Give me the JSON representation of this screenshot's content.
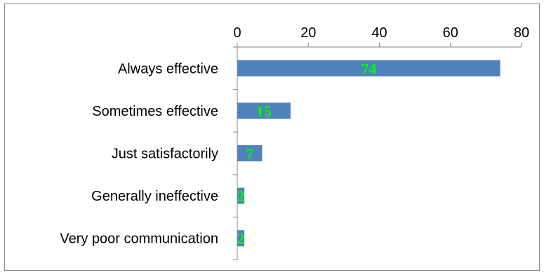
{
  "chart_data": {
    "type": "bar",
    "orientation": "horizontal",
    "categories": [
      "Always effective",
      "Sometimes effective",
      "Just satisfactorily",
      "Generally ineffective",
      "Very poor communication"
    ],
    "values": [
      74,
      15,
      7,
      2,
      2
    ],
    "data_labels": [
      "74",
      "15",
      "7",
      "2",
      "2"
    ],
    "xlim": [
      0,
      80
    ],
    "x_ticks": [
      "0",
      "20",
      "40",
      "60",
      "80"
    ],
    "x_axis_position": "top",
    "grid": false,
    "legend": "none",
    "title": "",
    "xlabel": "",
    "ylabel": "",
    "colors": {
      "bar": "#4f81bd",
      "data_label": "#00ff00",
      "axis": "#868686",
      "frame": "#8c8c8c"
    }
  }
}
